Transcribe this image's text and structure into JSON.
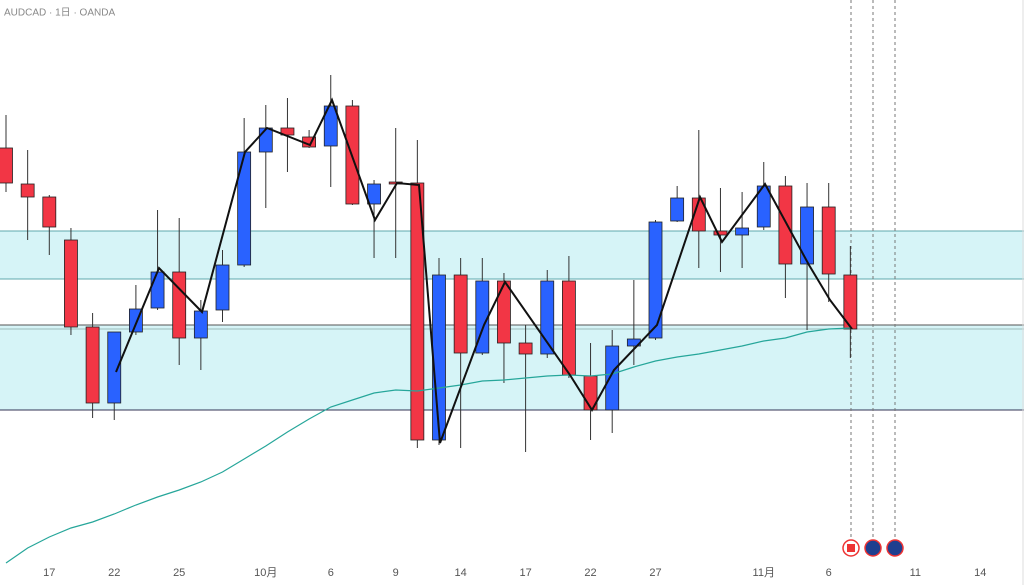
{
  "chart_data": {
    "type": "candlestick",
    "title": "AUDCAD · 1日 · OANDA",
    "categories": [
      null,
      null,
      "17",
      null,
      null,
      "22",
      null,
      null,
      "25",
      null,
      null,
      null,
      "10月",
      null,
      null,
      "6",
      null,
      null,
      "9",
      null,
      null,
      "14",
      null,
      null,
      "17",
      null,
      null,
      "22",
      null,
      null,
      "27",
      null,
      null,
      null,
      null,
      "11月",
      null,
      null,
      "6",
      null,
      null,
      null,
      "11",
      null,
      null,
      "14"
    ],
    "open": [
      417,
      381,
      368,
      325,
      238,
      162,
      233,
      257,
      293,
      227,
      255,
      300,
      413,
      437,
      428,
      419,
      459,
      361,
      383,
      382,
      125,
      290,
      212,
      284,
      222,
      211,
      284,
      189,
      155,
      219,
      227,
      344,
      367,
      334,
      330,
      338,
      379,
      301,
      358,
      290,
      null,
      null,
      null,
      null,
      null,
      null
    ],
    "high": [
      450,
      415,
      370,
      337,
      252,
      233,
      280,
      355,
      347,
      265,
      315,
      447,
      460,
      467,
      435,
      490,
      465,
      385,
      437,
      425,
      307,
      307,
      307,
      292,
      240,
      295,
      309,
      222,
      235,
      285,
      345,
      379,
      435,
      377,
      373,
      403,
      389,
      382,
      382,
      319,
      null,
      null,
      null,
      null,
      null,
      null
    ],
    "low": [
      373,
      325,
      310,
      230,
      147,
      145,
      230,
      255,
      200,
      195,
      243,
      298,
      357,
      393,
      417,
      378,
      360,
      307,
      307,
      117,
      120,
      117,
      210,
      182,
      113,
      207,
      187,
      125,
      132,
      200,
      225,
      343,
      297,
      293,
      297,
      335,
      267,
      235,
      263,
      207,
      null,
      null,
      null,
      null,
      null,
      null
    ],
    "close": [
      382,
      368,
      338,
      238,
      162,
      233,
      256,
      293,
      227,
      254,
      300,
      413,
      437,
      430,
      418,
      459,
      361,
      381,
      381,
      125,
      290,
      212,
      284,
      222,
      211,
      284,
      190,
      155,
      219,
      226,
      343,
      367,
      334,
      330,
      337,
      379,
      301,
      358,
      291,
      236,
      null,
      null,
      null,
      null,
      null,
      null
    ],
    "up_color": "#2962ff",
    "down_color": "#f23645",
    "moving_average": {
      "color": "#26a69a",
      "values": [
        2,
        17,
        28,
        37,
        43,
        51,
        60,
        68,
        75,
        83,
        93,
        106,
        119,
        133,
        146,
        158,
        165,
        172,
        175,
        174,
        177,
        180,
        184,
        185,
        187,
        189,
        190,
        189,
        191,
        198,
        204,
        208,
        211,
        215,
        219,
        224,
        227,
        233,
        236,
        237,
        null,
        null,
        null,
        null,
        null,
        null
      ]
    },
    "ylim": [
      0,
      565
    ]
  }
}
